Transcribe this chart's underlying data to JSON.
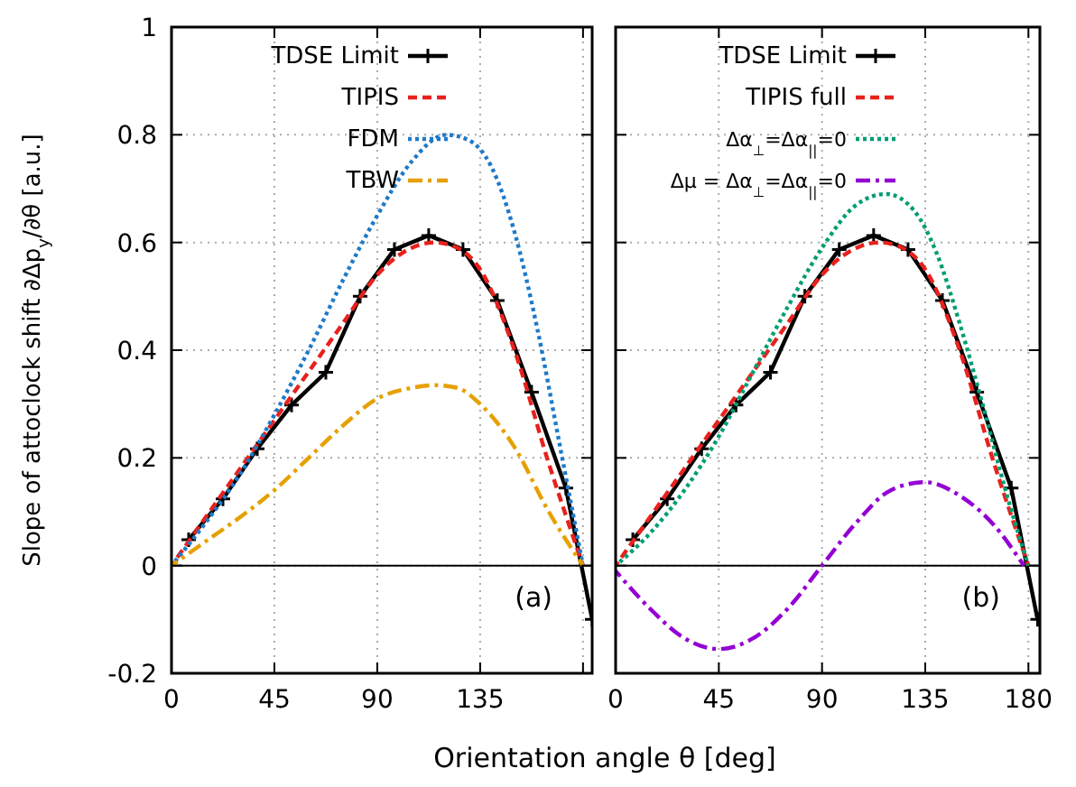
{
  "chart_data": [
    {
      "type": "line",
      "ylabel": "Slope of attoclock shift ∂Δp$_{y}$/∂θ  [a.u.]",
      "xlim": [
        0,
        184
      ],
      "xticks": [
        0,
        45,
        90,
        135,
        {
          "value": 180,
          "label": null
        }
      ],
      "ylim": [
        -0.2,
        1
      ],
      "yticks": [
        -0.2,
        0,
        0.2,
        0.4,
        0.6,
        0.8,
        1
      ],
      "grid": true,
      "legend": "top left",
      "annotations": [
        "(a)"
      ],
      "ref_lines": [
        {
          "axis": "y",
          "value": 0,
          "color": "#000000"
        }
      ],
      "series": [
        {
          "name": "TDSE Limit",
          "color": "#000000",
          "marker": "cross",
          "line_style": "solid",
          "x": [
            7.5,
            22.5,
            37.5,
            52.5,
            67.5,
            82.5,
            97.5,
            112.5,
            127.5,
            142.5,
            157.5,
            172.5,
            184
          ],
          "values": [
            0.048,
            0.124,
            0.217,
            0.298,
            0.359,
            0.5,
            0.587,
            0.613,
            0.587,
            0.492,
            0.322,
            0.144,
            -0.1
          ]
        },
        {
          "name": "TIPIS",
          "color": "#e8211d",
          "marker": "none",
          "line_style": "dashed",
          "x": [
            0,
            15,
            30,
            45,
            60,
            75,
            90,
            105,
            115,
            125,
            135,
            150,
            165,
            180
          ],
          "values": [
            0,
            0.09,
            0.18,
            0.27,
            0.36,
            0.45,
            0.54,
            0.59,
            0.6,
            0.59,
            0.55,
            0.4,
            0.19,
            0
          ]
        },
        {
          "name": "FDM",
          "color": "#1f7ac8",
          "marker": "none",
          "line_style": "dotted",
          "x": [
            0,
            15,
            30,
            45,
            60,
            75,
            90,
            105,
            120,
            130,
            140,
            150,
            160,
            170,
            180
          ],
          "values": [
            0,
            0.08,
            0.17,
            0.28,
            0.4,
            0.53,
            0.65,
            0.75,
            0.8,
            0.79,
            0.74,
            0.62,
            0.44,
            0.22,
            0
          ]
        },
        {
          "name": "TBW",
          "color": "#e6a000",
          "marker": "none",
          "line_style": "dashdot",
          "x": [
            0,
            15,
            30,
            45,
            60,
            75,
            90,
            105,
            115,
            125,
            135,
            150,
            165,
            180
          ],
          "values": [
            0,
            0.045,
            0.09,
            0.14,
            0.2,
            0.26,
            0.31,
            0.33,
            0.335,
            0.33,
            0.3,
            0.22,
            0.1,
            0
          ]
        }
      ]
    },
    {
      "type": "line",
      "xlabel": "Orientation angle θ  [deg]",
      "xlim": [
        0,
        185
      ],
      "xticks": [
        0,
        45,
        90,
        135,
        180
      ],
      "ylim": [
        -0.2,
        1
      ],
      "yticks": [
        -0.2,
        0,
        0.2,
        0.4,
        0.6,
        0.8,
        1
      ],
      "tick_labels": "x",
      "grid": true,
      "legend": "top left",
      "annotations": [
        "(b)"
      ],
      "ref_lines": [
        {
          "axis": "y",
          "value": 0,
          "color": "#000000"
        }
      ],
      "series": [
        {
          "name": "TDSE Limit",
          "color": "#000000",
          "marker": "cross",
          "line_style": "solid",
          "x": [
            7.5,
            22.5,
            37.5,
            52.5,
            67.5,
            82.5,
            97.5,
            112.5,
            127.5,
            142.5,
            157.5,
            172.5,
            184
          ],
          "values": [
            0.048,
            0.124,
            0.217,
            0.298,
            0.359,
            0.5,
            0.587,
            0.613,
            0.587,
            0.492,
            0.322,
            0.144,
            -0.1
          ]
        },
        {
          "name": "TIPIS full",
          "color": "#e8211d",
          "marker": "none",
          "line_style": "dashed",
          "x": [
            0,
            15,
            30,
            45,
            60,
            75,
            90,
            105,
            115,
            125,
            135,
            150,
            165,
            180
          ],
          "values": [
            0,
            0.09,
            0.18,
            0.27,
            0.36,
            0.45,
            0.54,
            0.59,
            0.6,
            0.59,
            0.55,
            0.4,
            0.19,
            0
          ]
        },
        {
          "name": "Δα$_{⊥}$=Δα$_{||}$=0",
          "color": "#009e73",
          "marker": "none",
          "line_style": "dotted",
          "x": [
            0,
            15,
            30,
            45,
            60,
            75,
            90,
            105,
            118,
            130,
            140,
            150,
            160,
            170,
            180
          ],
          "values": [
            0,
            0.06,
            0.14,
            0.24,
            0.36,
            0.48,
            0.59,
            0.67,
            0.69,
            0.66,
            0.58,
            0.45,
            0.3,
            0.14,
            0
          ]
        },
        {
          "name": "Δμ = Δα$_{⊥}$=Δα$_{||}$=0",
          "color": "#9400d3",
          "marker": "none",
          "line_style": "dashdot",
          "x": [
            0,
            15,
            30,
            45,
            60,
            75,
            90,
            105,
            120,
            135,
            150,
            165,
            178
          ],
          "values": [
            -0.01,
            -0.08,
            -0.135,
            -0.155,
            -0.135,
            -0.08,
            0,
            0.08,
            0.14,
            0.155,
            0.13,
            0.075,
            0
          ]
        }
      ]
    }
  ]
}
